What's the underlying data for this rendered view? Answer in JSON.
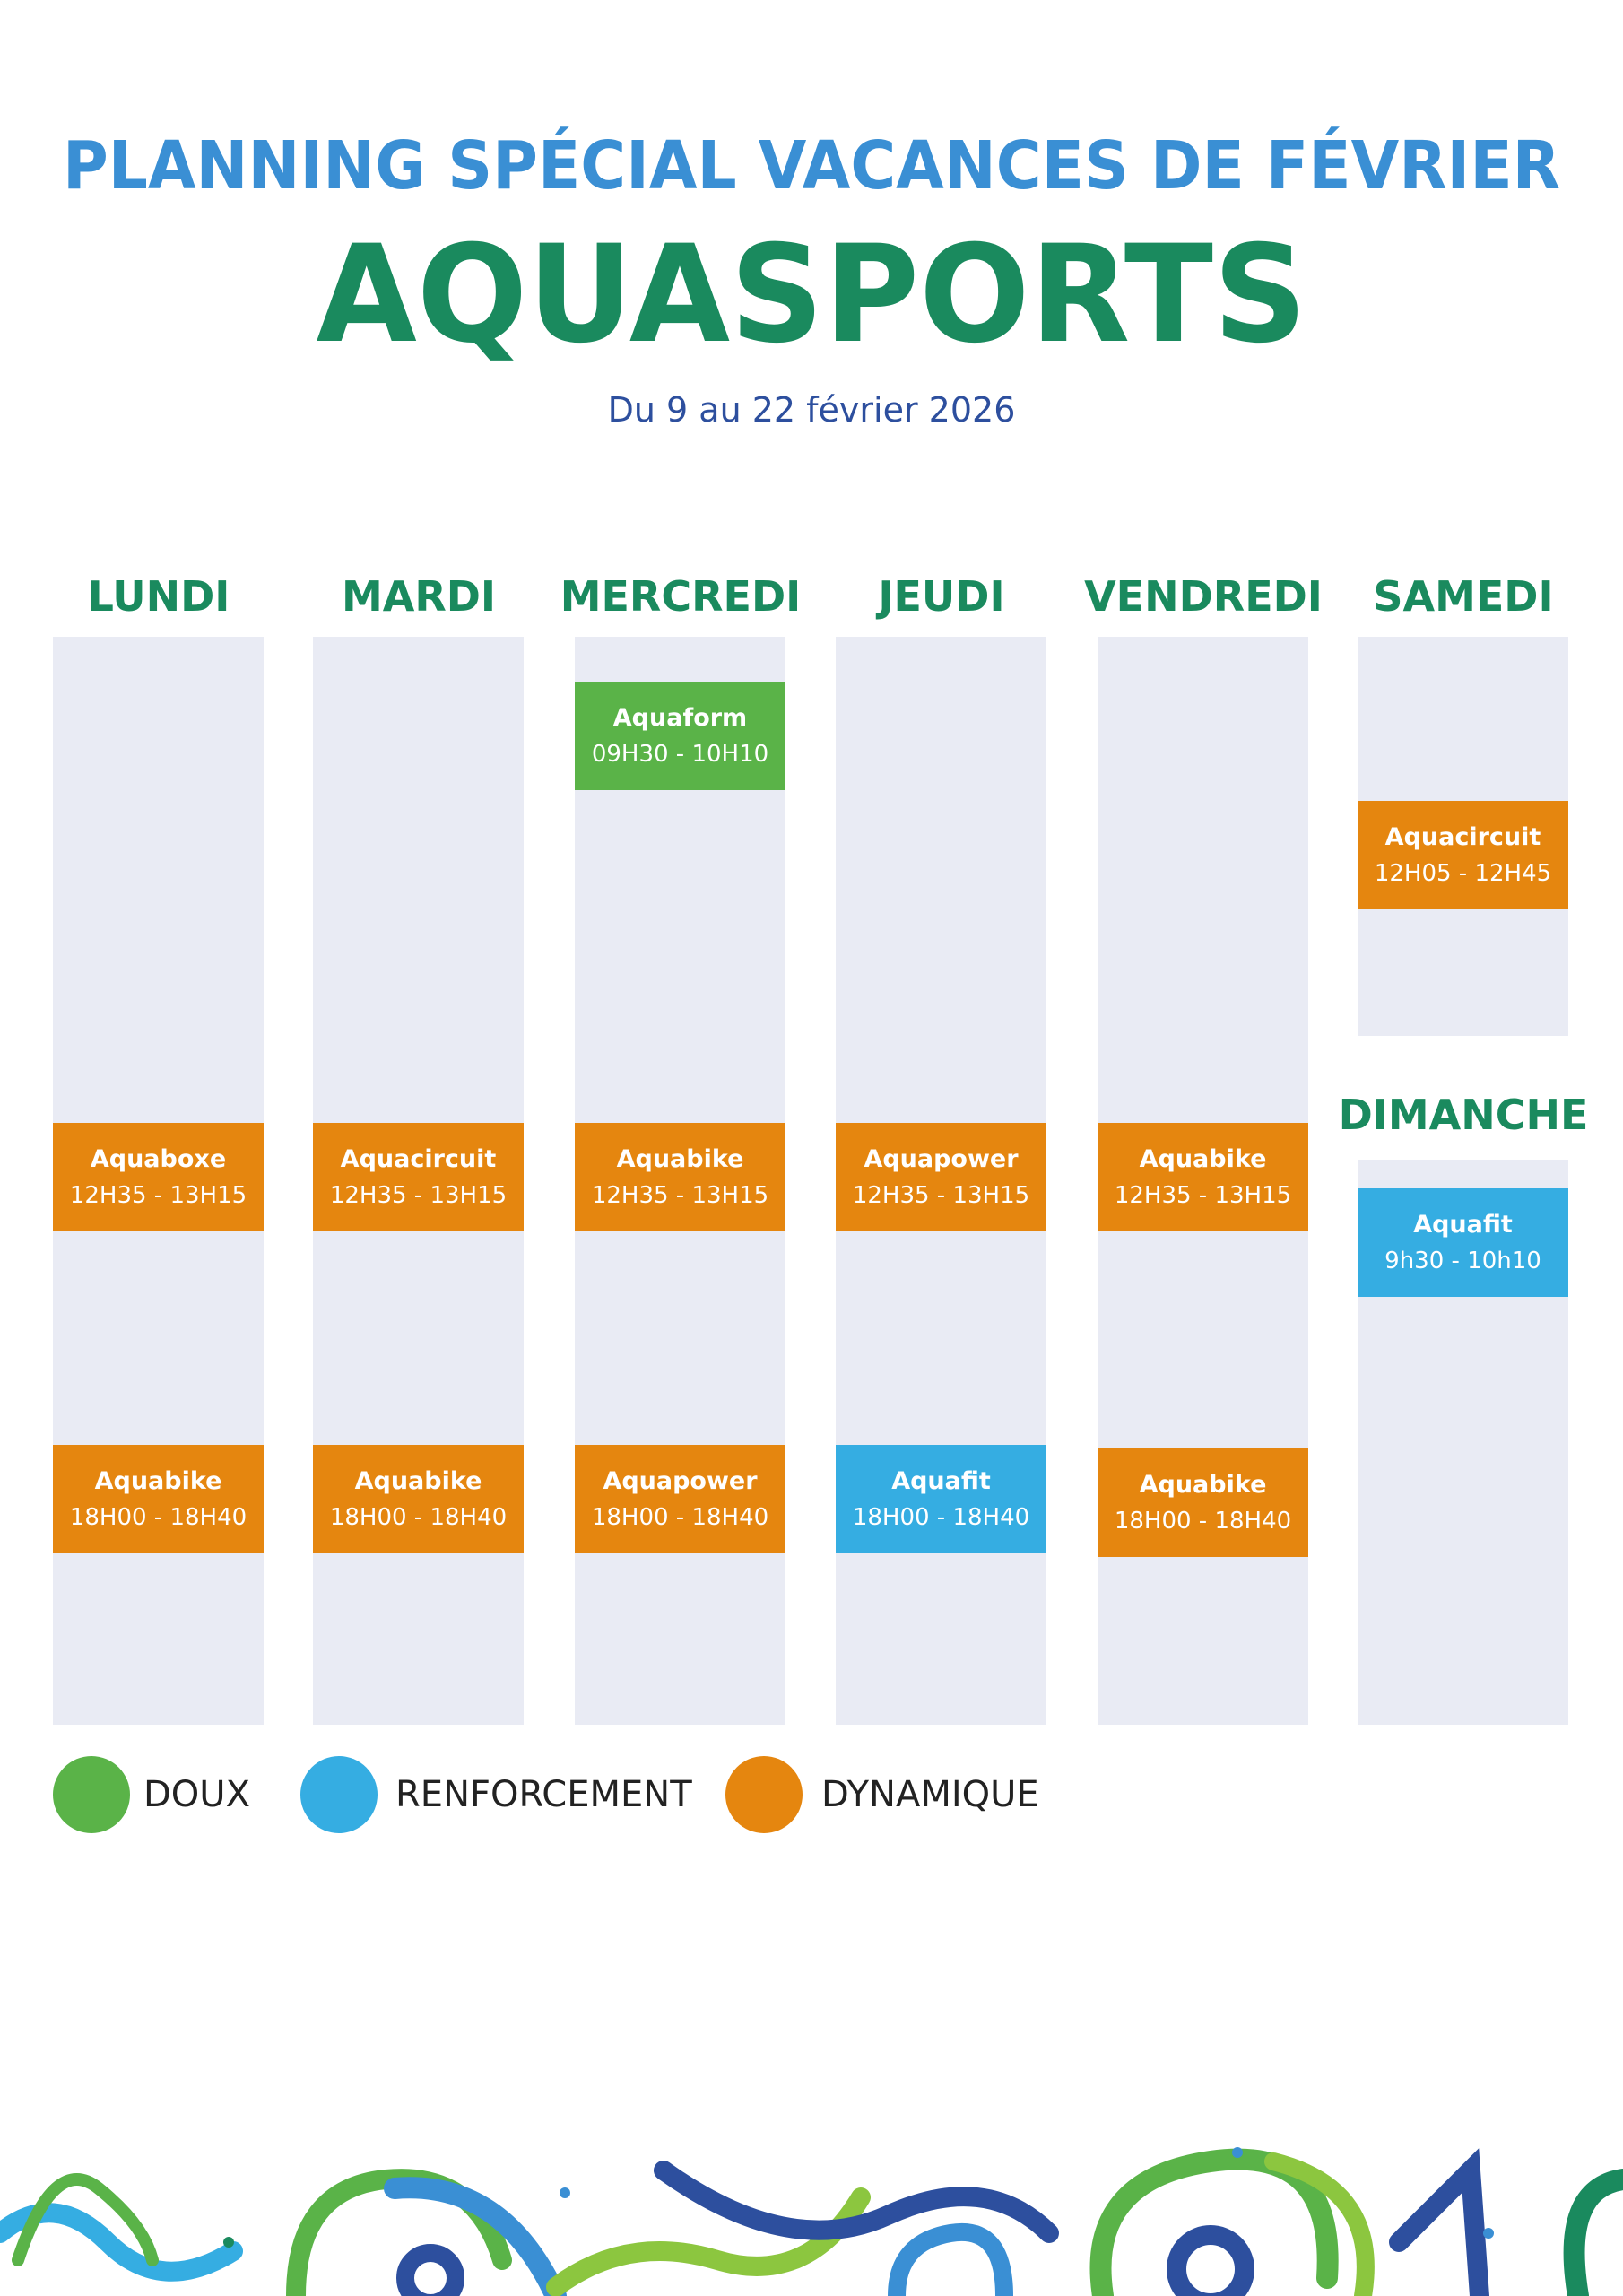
{
  "header": {
    "title": "PLANNING SPÉCIAL VACANCES DE FÉVRIER",
    "name": "AQUASPORTS",
    "dates": "Du 9 au 22 février 2026"
  },
  "days": [
    "LUNDI",
    "MARDI",
    "MERCREDI",
    "JEUDI",
    "VENDREDI",
    "SAMEDI",
    "DIMANCHE"
  ],
  "sessions": [
    {
      "name": "Aquaform",
      "time": "09H30 - 10H10"
    },
    {
      "name": "Aquacircuit",
      "time": "12H05 - 12H45"
    },
    {
      "name": "Aquaboxe",
      "time": "12H35 - 13H15"
    },
    {
      "name": "Aquacircuit",
      "time": "12H35 - 13H15"
    },
    {
      "name": "Aquabike",
      "time": "12H35 - 13H15"
    },
    {
      "name": "Aquapower",
      "time": "12H35 - 13H15"
    },
    {
      "name": "Aquabike",
      "time": "12H35 - 13H15"
    },
    {
      "name": "Aquafit",
      "time": "9h30 - 10h10"
    },
    {
      "name": "Aquabike",
      "time": "18H00 - 18H40"
    },
    {
      "name": "Aquabike",
      "time": "18H00 - 18H40"
    },
    {
      "name": "Aquapower",
      "time": "18H00 - 18H40"
    },
    {
      "name": "Aquafit",
      "time": "18H00 - 18H40"
    },
    {
      "name": "Aquabike",
      "time": "18H00 - 18H40"
    }
  ],
  "legend": [
    "DOUX",
    "RENFORCEMENT",
    "DYNAMIQUE"
  ]
}
